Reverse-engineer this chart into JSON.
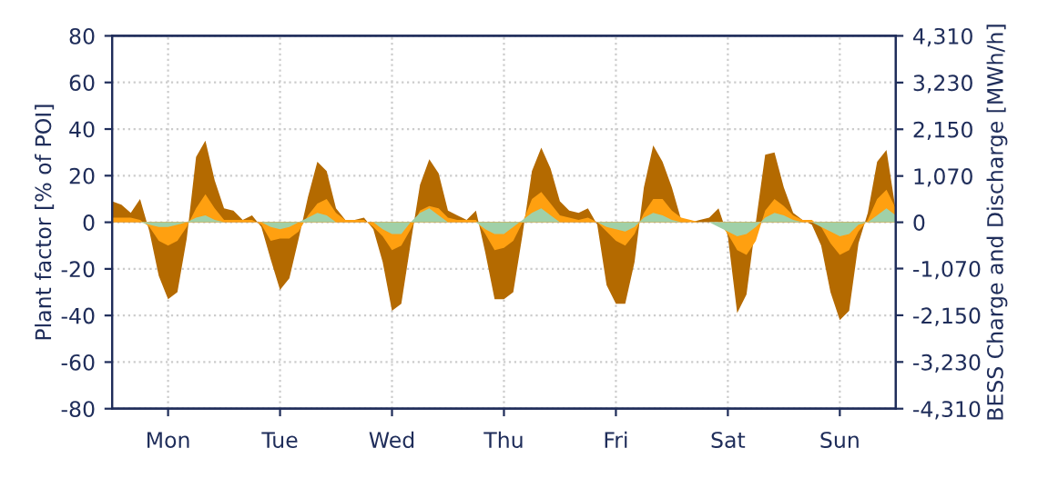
{
  "chart_data": {
    "type": "area",
    "ylabel": "Plant factor [% of POI]",
    "y2label": "BESS Charge and Discharge [MWh/h]",
    "ylim": [
      -80,
      80
    ],
    "yticks": [
      -80,
      -60,
      -40,
      -20,
      0,
      20,
      40,
      60,
      80
    ],
    "y2lim": [
      -4310,
      4310
    ],
    "y2ticks": [
      {
        "value": -4310,
        "label": "-4,310"
      },
      {
        "value": -3230,
        "label": "-3,230"
      },
      {
        "value": -2150,
        "label": "-2,150"
      },
      {
        "value": -1070,
        "label": "-1,070"
      },
      0,
      {
        "value": 1070,
        "label": "1,070"
      },
      {
        "value": 2150,
        "label": "2,150"
      },
      {
        "value": 3230,
        "label": "3,230"
      },
      {
        "value": 4310,
        "label": "4,310"
      }
    ],
    "categories": [
      null,
      null,
      null,
      null,
      null,
      null,
      "Mon",
      null,
      null,
      null,
      null,
      null,
      null,
      null,
      null,
      null,
      null,
      null,
      "Tue",
      null,
      null,
      null,
      null,
      null,
      null,
      null,
      null,
      null,
      null,
      null,
      "Wed",
      null,
      null,
      null,
      null,
      null,
      null,
      null,
      null,
      null,
      null,
      null,
      "Thu",
      null,
      null,
      null,
      null,
      null,
      null,
      null,
      null,
      null,
      null,
      null,
      "Fri",
      null,
      null,
      null,
      null,
      null,
      null,
      null,
      null,
      null,
      null,
      null,
      "Sat",
      null,
      null,
      null,
      null,
      null,
      null,
      null,
      null,
      null,
      null,
      null,
      "Sun",
      null,
      null,
      null,
      null,
      null,
      null
    ],
    "grid": true,
    "series": [
      {
        "color": "#b46a00",
        "values": [
          9,
          7.5,
          4,
          10,
          -4,
          -23,
          -33,
          -30,
          -7,
          28,
          35,
          18,
          6,
          5,
          1,
          3,
          -2,
          -16,
          -29,
          -24,
          -7,
          11,
          26,
          22,
          6,
          1,
          1,
          2,
          -3,
          -17,
          -38,
          -35,
          -9,
          16,
          27,
          21,
          5,
          3,
          1,
          5,
          -13,
          -33,
          -33,
          -30,
          -5,
          22,
          32,
          23,
          9,
          5,
          4,
          6,
          -1,
          -27,
          -35,
          -35,
          -17,
          15,
          33,
          26,
          15,
          1,
          0,
          1,
          2,
          6,
          -6,
          -39,
          -31,
          0,
          29,
          30,
          15,
          4,
          1,
          -1,
          -10,
          -30,
          -42,
          -38,
          -9,
          4,
          26,
          31,
          5
        ]
      },
      {
        "color": "#ffa010",
        "values": [
          2,
          2,
          2,
          1,
          -2,
          -8,
          -10,
          -8,
          -2,
          6,
          12,
          6,
          1,
          1,
          1,
          1,
          -1,
          -8,
          -7,
          -7,
          -4,
          3,
          8,
          10,
          4,
          1,
          1,
          1,
          -2,
          -6,
          -12,
          -10,
          -3,
          5,
          7,
          6,
          2,
          1,
          1,
          1,
          -5,
          -12,
          -11,
          -8,
          0,
          10,
          13,
          8,
          3,
          2,
          1,
          2,
          0,
          -4,
          -8,
          -10,
          -5,
          4,
          10,
          10,
          5,
          2,
          1,
          0,
          0,
          0,
          -5,
          -12,
          -14,
          -8,
          5,
          10,
          7,
          3,
          1,
          1,
          -2,
          -9,
          -14,
          -12,
          -4,
          1,
          10,
          14,
          6
        ]
      },
      {
        "color": "#a0d0a8",
        "values": [
          0,
          0,
          0,
          0,
          -1,
          -2,
          -2,
          -1,
          0,
          2,
          3,
          1,
          0,
          0,
          0,
          0,
          0,
          -2,
          -3,
          -2,
          0,
          2,
          4,
          3,
          0,
          0,
          0,
          0,
          0,
          -3,
          -5,
          -5,
          0,
          4,
          6,
          3,
          0,
          0,
          0,
          0,
          -3,
          -5,
          -5,
          -2,
          1,
          4,
          6,
          3,
          0,
          0,
          0,
          0,
          0,
          -2,
          -3,
          -4,
          -2,
          2,
          4,
          3,
          1,
          0,
          0,
          0,
          0,
          -2,
          -4,
          -6,
          -5,
          -2,
          2,
          4,
          3,
          1,
          0,
          0,
          -2,
          -4,
          -6,
          -5,
          -1,
          0,
          3,
          6,
          3
        ]
      }
    ]
  }
}
